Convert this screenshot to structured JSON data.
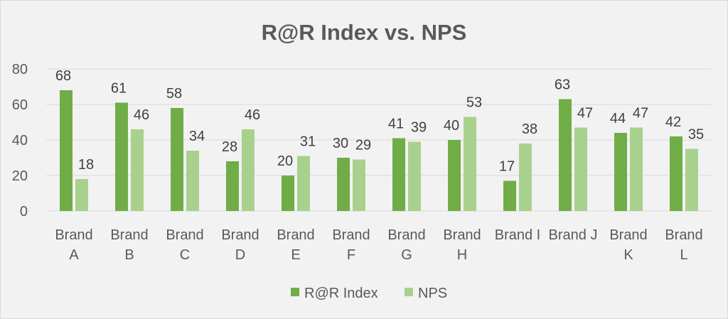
{
  "chart_data": {
    "type": "bar",
    "title": "R@R Index vs. NPS",
    "categories": [
      [
        "Brand",
        "A"
      ],
      [
        "Brand",
        "B"
      ],
      [
        "Brand",
        "C"
      ],
      [
        "Brand",
        "D"
      ],
      [
        "Brand",
        "E"
      ],
      [
        "Brand",
        "F"
      ],
      [
        "Brand",
        "G"
      ],
      [
        "Brand",
        "H"
      ],
      [
        "Brand I"
      ],
      [
        "Brand J"
      ],
      [
        "Brand",
        "K"
      ],
      [
        "Brand",
        "L"
      ]
    ],
    "series": [
      {
        "name": "R@R Index",
        "color": "#70ad47",
        "values": [
          68,
          61,
          58,
          28,
          20,
          30,
          41,
          40,
          17,
          63,
          44,
          42
        ]
      },
      {
        "name": "NPS",
        "color": "#a9d18e",
        "values": [
          18,
          46,
          34,
          46,
          31,
          29,
          39,
          53,
          38,
          47,
          47,
          35
        ]
      }
    ],
    "ylim": [
      0,
      80
    ],
    "yticks": [
      0,
      20,
      40,
      60,
      80
    ],
    "grid": true,
    "legend": "bottom",
    "data_labels": true
  }
}
